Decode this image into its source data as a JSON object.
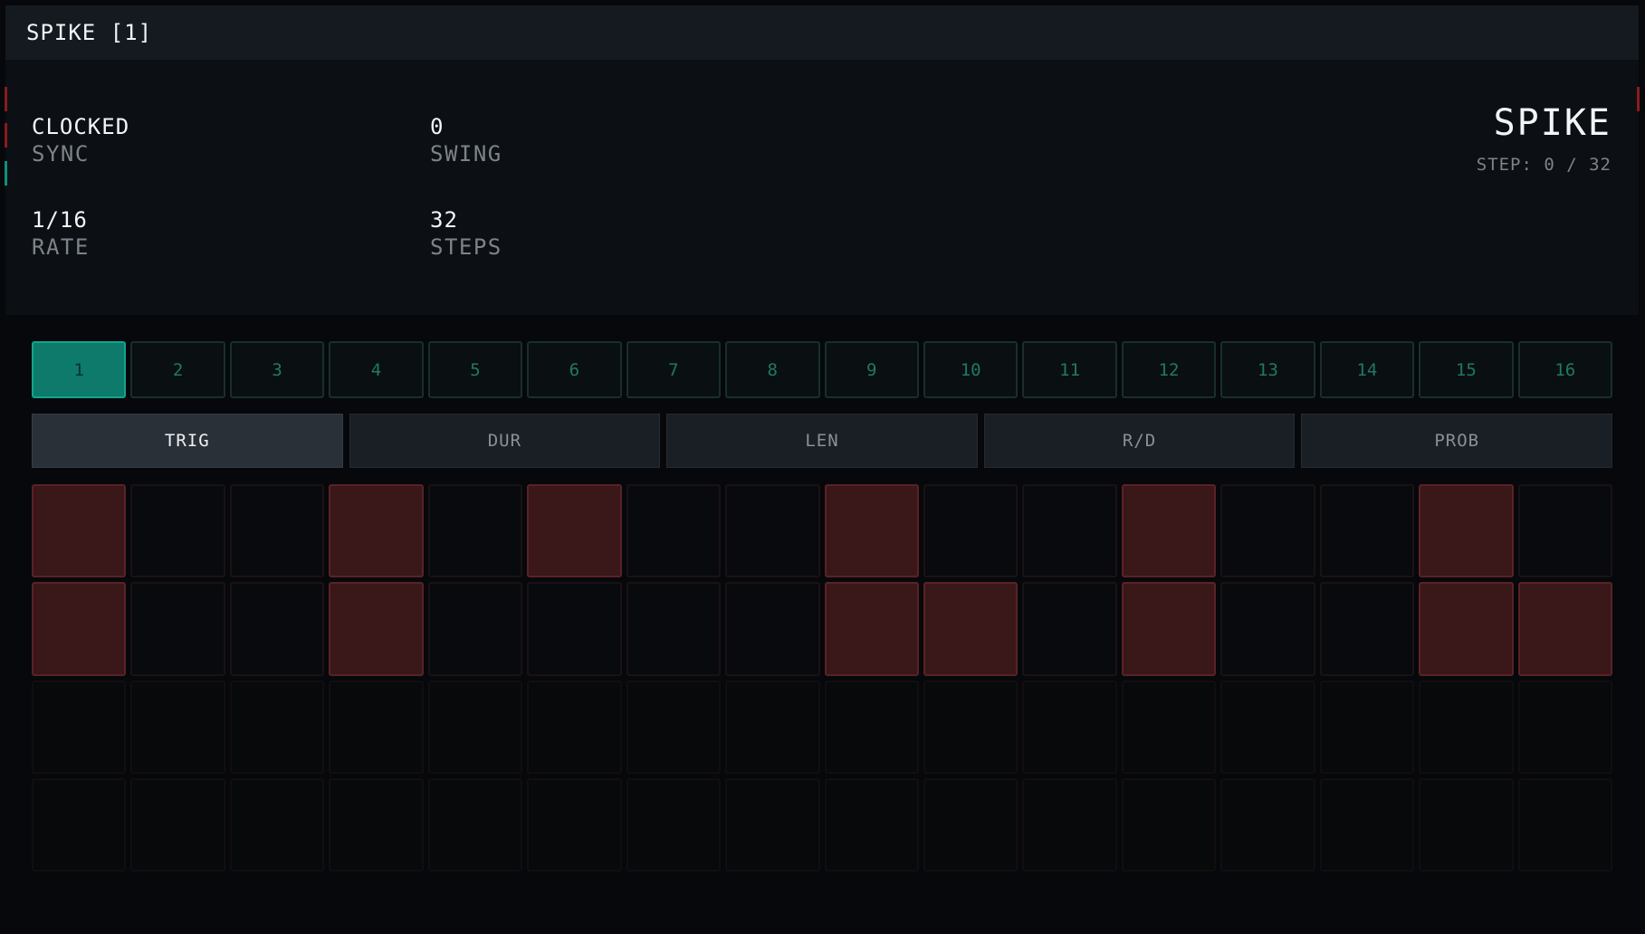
{
  "title": "SPIKE [1]",
  "params": {
    "sync": {
      "value": "CLOCKED",
      "label": "SYNC"
    },
    "swing": {
      "value": "0",
      "label": "SWING"
    },
    "rate": {
      "value": "1/16",
      "label": "RATE"
    },
    "steps": {
      "value": "32",
      "label": "STEPS"
    }
  },
  "brand": {
    "name": "SPIKE",
    "step_readout": "STEP: 0 / 32"
  },
  "step_pages": [
    "1",
    "2",
    "3",
    "4",
    "5",
    "6",
    "7",
    "8",
    "9",
    "10",
    "11",
    "12",
    "13",
    "14",
    "15",
    "16"
  ],
  "active_page": 0,
  "tabs": [
    "TRIG",
    "DUR",
    "LEN",
    "R/D",
    "PROB"
  ],
  "active_tab": 0,
  "grid": {
    "rows": [
      [
        1,
        0,
        0,
        1,
        0,
        1,
        0,
        0,
        1,
        0,
        0,
        1,
        0,
        0,
        1,
        0
      ],
      [
        1,
        0,
        0,
        1,
        0,
        0,
        0,
        0,
        1,
        1,
        0,
        1,
        0,
        0,
        1,
        1
      ],
      [
        0,
        0,
        0,
        0,
        0,
        0,
        0,
        0,
        0,
        0,
        0,
        0,
        0,
        0,
        0,
        0
      ],
      [
        0,
        0,
        0,
        0,
        0,
        0,
        0,
        0,
        0,
        0,
        0,
        0,
        0,
        0,
        0,
        0
      ]
    ]
  },
  "colors": {
    "accent": "#0d7a6c",
    "trig_on": "#3a1719",
    "edge_red": "#8a1c1c",
    "edge_teal": "#0f8f7a"
  }
}
